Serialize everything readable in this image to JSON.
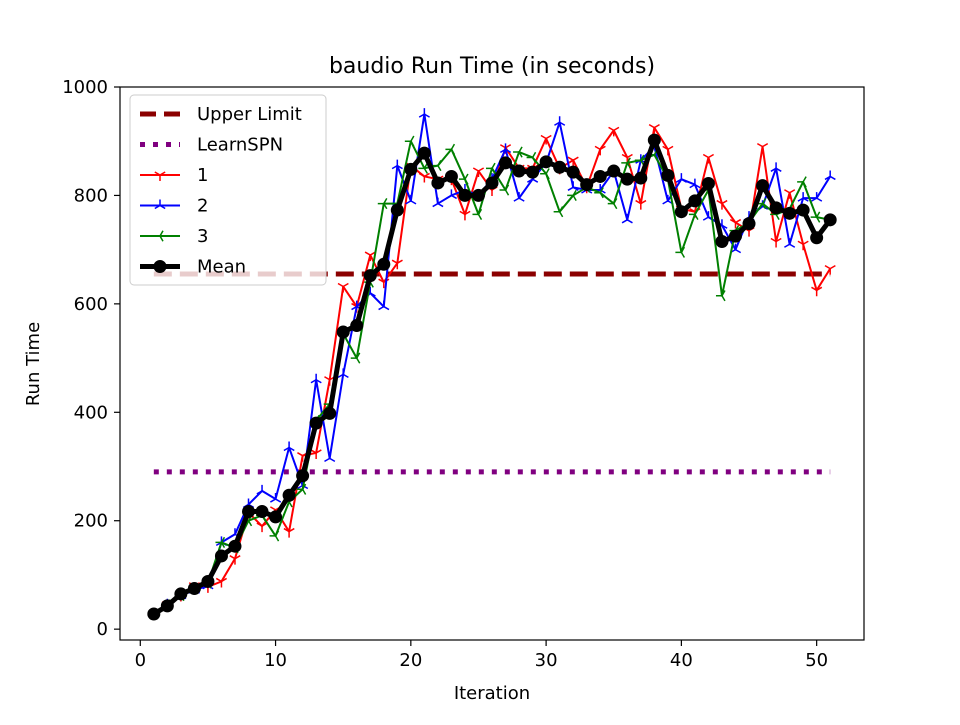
{
  "chart_data": {
    "type": "line",
    "title": "baudio Run Time (in seconds)",
    "xlabel": "Iteration",
    "ylabel": "Run Time",
    "xlim": [
      -1.5,
      53.5
    ],
    "ylim": [
      -20,
      1000
    ],
    "xticks": [
      0,
      10,
      20,
      30,
      40,
      50
    ],
    "yticks": [
      0,
      200,
      400,
      600,
      800,
      1000
    ],
    "grid": false,
    "legend_position": "upper-left",
    "reference_lines": [
      {
        "name": "Upper Limit",
        "y": 655,
        "x_range": [
          1,
          51
        ],
        "color": "#8b0000",
        "style": "dashed"
      },
      {
        "name": "LearnSPN",
        "y": 290,
        "x_range": [
          1,
          51
        ],
        "color": "#800080",
        "style": "dotted"
      }
    ],
    "x": [
      1,
      2,
      3,
      4,
      5,
      6,
      7,
      8,
      9,
      10,
      11,
      12,
      13,
      14,
      15,
      16,
      17,
      18,
      19,
      20,
      21,
      22,
      23,
      24,
      25,
      26,
      27,
      28,
      29,
      30,
      31,
      32,
      33,
      34,
      35,
      36,
      37,
      38,
      39,
      40,
      41,
      42,
      43,
      44,
      45,
      46,
      47,
      48,
      49,
      50,
      51
    ],
    "series": [
      {
        "name": "1",
        "color": "#ff0000",
        "marker": "tri-down",
        "values": [
          28,
          45,
          62,
          80,
          78,
          88,
          130,
          215,
          190,
          220,
          180,
          320,
          325,
          460,
          632,
          595,
          690,
          640,
          675,
          855,
          835,
          830,
          830,
          765,
          845,
          810,
          888,
          850,
          850,
          905,
          850,
          865,
          815,
          885,
          920,
          870,
          785,
          925,
          885,
          775,
          770,
          870,
          785,
          750,
          735,
          890,
          715,
          805,
          710,
          625,
          665
        ]
      },
      {
        "name": "2",
        "color": "#0000ff",
        "marker": "tri-up",
        "values": [
          28,
          45,
          62,
          72,
          80,
          160,
          175,
          230,
          255,
          240,
          335,
          265,
          460,
          315,
          470,
          595,
          620,
          595,
          855,
          790,
          950,
          785,
          800,
          810,
          800,
          830,
          885,
          795,
          830,
          860,
          935,
          815,
          810,
          810,
          845,
          755,
          865,
          890,
          790,
          830,
          820,
          760,
          745,
          700,
          760,
          780,
          850,
          710,
          795,
          795,
          835
        ]
      },
      {
        "name": "3",
        "color": "#008000",
        "marker": "tri-left",
        "values": [
          28,
          45,
          62,
          75,
          85,
          160,
          150,
          200,
          210,
          172,
          235,
          258,
          385,
          415,
          545,
          500,
          640,
          785,
          785,
          900,
          850,
          855,
          885,
          830,
          765,
          850,
          810,
          880,
          870,
          840,
          770,
          800,
          815,
          805,
          785,
          860,
          865,
          875,
          830,
          695,
          765,
          810,
          615,
          735,
          750,
          785,
          765,
          775,
          825,
          760,
          755
        ]
      },
      {
        "name": "Mean",
        "color": "#000000",
        "marker": "circle",
        "values": [
          28,
          43,
          65,
          75,
          88,
          135,
          153,
          217,
          217,
          207,
          247,
          283,
          380,
          398,
          548,
          560,
          652,
          673,
          773,
          848,
          878,
          823,
          835,
          800,
          800,
          823,
          860,
          845,
          843,
          862,
          852,
          843,
          820,
          835,
          845,
          830,
          832,
          902,
          837,
          770,
          790,
          822,
          715,
          725,
          748,
          818,
          777,
          767,
          773,
          722,
          755
        ]
      }
    ]
  }
}
